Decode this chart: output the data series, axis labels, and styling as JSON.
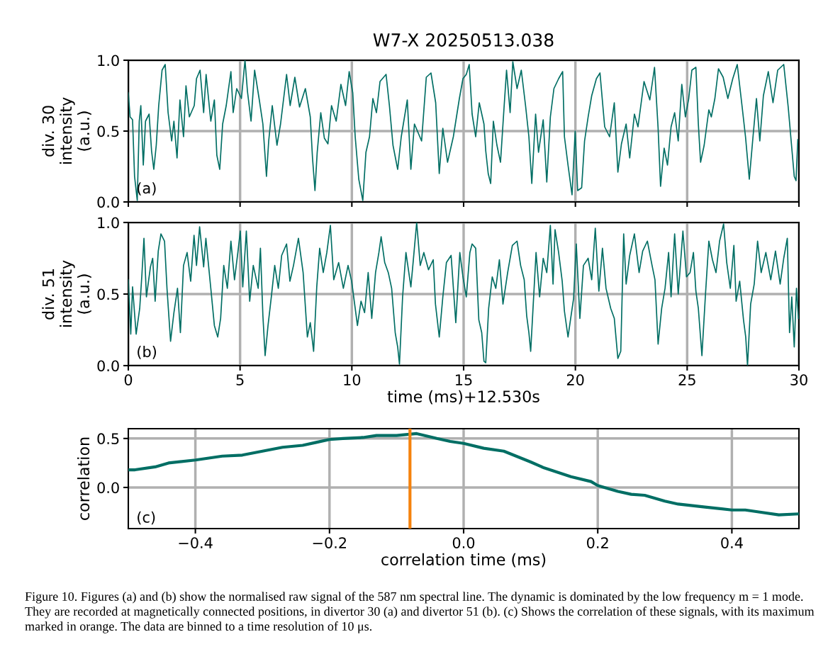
{
  "chart_data": [
    {
      "type": "line",
      "title": "W7-X 20250513.038",
      "ylabel": "div. 30\nintensity\n(a.u.)",
      "annotations": [
        "(a)"
      ],
      "series": [
        {
          "color": "#006e64",
          "x": [
            0,
            0.08,
            0.19,
            0.28,
            0.4,
            0.49,
            0.56,
            0.67,
            0.77,
            0.93,
            1.04,
            1.14,
            1.25,
            1.36,
            1.51,
            1.65,
            1.78,
            1.94,
            2.04,
            2.18,
            2.31,
            2.47,
            2.58,
            2.73,
            2.95,
            3.05,
            3.21,
            3.37,
            3.48,
            3.69,
            3.85,
            3.96,
            4.09,
            4.22,
            4.38,
            4.59,
            4.69,
            4.85,
            5.06,
            5.22,
            5.33,
            5.49,
            5.65,
            5.86,
            6.02,
            6.18,
            6.28,
            6.44,
            6.65,
            6.81,
            7.08,
            7.24,
            7.45,
            7.66,
            7.92,
            8.14,
            8.24,
            8.35,
            8.45,
            8.61,
            8.77,
            8.93,
            9.09,
            9.3,
            9.51,
            9.72,
            9.88,
            10.04,
            10.15,
            10.31,
            10.49,
            10.63,
            10.79,
            10.94,
            11.1,
            11.26,
            11.53,
            11.68,
            11.84,
            12.05,
            12.21,
            12.48,
            12.64,
            12.8,
            13.12,
            13.33,
            13.54,
            13.75,
            13.91,
            14.07,
            14.28,
            14.54,
            14.81,
            14.97,
            15.12,
            15.25,
            15.38,
            15.54,
            15.7,
            15.91,
            15.99,
            16.1,
            16.21,
            16.33,
            16.49,
            16.65,
            16.81,
            16.92,
            17.08,
            17.2,
            17.39,
            17.58,
            17.77,
            17.92,
            18.05,
            18.22,
            18.35,
            18.56,
            18.72,
            18.88,
            19.04,
            19.25,
            19.43,
            19.51,
            19.67,
            19.85,
            19.99,
            20.1,
            20.28,
            20.41,
            20.57,
            20.73,
            20.94,
            21.1,
            21.31,
            21.53,
            21.74,
            21.9,
            22.06,
            22.27,
            22.43,
            22.64,
            22.8,
            23.07,
            23.33,
            23.54,
            23.7,
            23.81,
            23.97,
            24.12,
            24.28,
            24.44,
            24.6,
            24.76,
            24.92,
            25.07,
            25.21,
            25.39,
            25.5,
            25.6,
            25.76,
            25.97,
            26.08,
            26.24,
            26.4,
            26.61,
            26.82,
            27.04,
            27.24,
            27.46,
            27.61,
            27.78,
            27.94,
            28.1,
            28.25,
            28.41,
            28.63,
            28.84,
            29.05,
            29.32,
            29.52,
            29.68,
            29.79,
            29.87,
            29.95
          ],
          "values": [
            0.77,
            0.6,
            0.58,
            0.18,
            0.01,
            0.57,
            0.68,
            0.26,
            0.57,
            0.62,
            0.36,
            0.23,
            0.4,
            0.68,
            0.93,
            0.97,
            0.63,
            0.43,
            0.57,
            0.31,
            0.72,
            0.46,
            0.82,
            0.6,
            0.68,
            0.87,
            0.93,
            0.63,
            0.9,
            0.57,
            0.72,
            0.33,
            0.23,
            0.55,
            0.68,
            0.92,
            0.63,
            0.8,
            0.73,
            1.0,
            0.78,
            0.57,
            0.93,
            0.72,
            0.55,
            0.18,
            0.43,
            0.68,
            0.4,
            0.55,
            0.9,
            0.68,
            0.88,
            0.67,
            0.8,
            0.6,
            0.31,
            0.08,
            0.35,
            0.63,
            0.45,
            0.41,
            0.68,
            0.57,
            0.83,
            0.68,
            0.92,
            0.77,
            0.46,
            0.16,
            0.01,
            0.35,
            0.46,
            0.73,
            0.63,
            0.85,
            0.9,
            0.68,
            0.4,
            0.23,
            0.46,
            0.72,
            0.23,
            0.55,
            0.43,
            0.88,
            0.91,
            0.7,
            0.2,
            0.52,
            0.28,
            0.46,
            0.73,
            0.87,
            0.9,
            0.97,
            0.62,
            0.46,
            0.7,
            0.55,
            0.36,
            0.2,
            0.13,
            0.57,
            0.4,
            0.28,
            0.67,
            0.93,
            0.63,
            0.99,
            0.8,
            0.93,
            0.68,
            0.46,
            0.13,
            0.62,
            0.35,
            0.58,
            0.14,
            0.6,
            0.8,
            0.87,
            0.92,
            0.46,
            0.26,
            0.05,
            0.5,
            0.08,
            0.1,
            0.43,
            0.6,
            0.75,
            0.87,
            0.91,
            0.53,
            0.46,
            0.7,
            0.21,
            0.41,
            0.55,
            0.31,
            0.62,
            0.53,
            0.85,
            0.72,
            0.95,
            0.52,
            0.11,
            0.38,
            0.26,
            0.53,
            0.63,
            0.43,
            0.83,
            0.6,
            0.73,
            0.93,
            0.95,
            0.55,
            0.28,
            0.4,
            0.65,
            0.6,
            0.73,
            0.94,
            0.88,
            0.73,
            0.87,
            0.97,
            0.67,
            0.46,
            0.16,
            0.45,
            0.73,
            0.43,
            0.75,
            0.92,
            0.7,
            0.93,
            0.97,
            0.67,
            0.38,
            0.18,
            0.15,
            0.44
          ]
        }
      ],
      "xlim": [
        0,
        30
      ],
      "xticks": [
        0,
        5,
        10,
        15,
        20,
        25,
        30
      ],
      "ylim": [
        0,
        1
      ],
      "yticks": [
        {
          "value": 0,
          "label": "0.0"
        },
        {
          "value": 0.5,
          "label": "0.5"
        },
        {
          "value": 1,
          "label": "1.0"
        }
      ],
      "tick_labels": "y",
      "grid": true
    },
    {
      "type": "line",
      "ylabel": "div. 51\nintensity\n(a.u.)",
      "xlabel": "time (ms)+12.530s",
      "annotations": [
        "(b)"
      ],
      "series": [
        {
          "color": "#006e64",
          "x": [
            0,
            0.11,
            0.19,
            0.35,
            0.51,
            0.61,
            0.7,
            0.81,
            0.99,
            1.09,
            1.2,
            1.34,
            1.46,
            1.62,
            1.73,
            1.89,
            2.04,
            2.2,
            2.33,
            2.47,
            2.63,
            2.79,
            2.94,
            3.05,
            3.19,
            3.37,
            3.47,
            3.69,
            3.85,
            4.0,
            4.13,
            4.27,
            4.43,
            4.59,
            4.75,
            4.9,
            5.01,
            5.12,
            5.28,
            5.43,
            5.59,
            5.81,
            5.91,
            6.02,
            6.12,
            6.25,
            6.39,
            6.55,
            6.71,
            6.86,
            7.08,
            7.23,
            7.39,
            7.61,
            7.82,
            8.01,
            8.14,
            8.29,
            8.43,
            8.56,
            8.72,
            8.88,
            9.04,
            9.19,
            9.41,
            9.62,
            9.83,
            9.99,
            10.15,
            10.25,
            10.41,
            10.57,
            10.73,
            10.89,
            11.06,
            11.21,
            11.31,
            11.47,
            11.63,
            11.78,
            11.94,
            12.05,
            12.13,
            12.27,
            12.42,
            12.64,
            12.74,
            12.9,
            13.06,
            13.22,
            13.43,
            13.64,
            13.74,
            13.91,
            14.07,
            14.23,
            14.44,
            14.65,
            14.83,
            14.97,
            15.12,
            15.28,
            15.38,
            15.54,
            15.68,
            15.81,
            15.91,
            15.99,
            16.12,
            16.28,
            16.44,
            16.6,
            16.76,
            16.97,
            17.18,
            17.39,
            17.55,
            17.71,
            17.82,
            17.92,
            18.0,
            18.08,
            18.24,
            18.4,
            18.56,
            18.72,
            18.88,
            19.0,
            19.09,
            19.25,
            19.41,
            19.51,
            19.67,
            19.78,
            19.92,
            20.04,
            20.2,
            20.36,
            20.57,
            20.73,
            20.89,
            21.05,
            21.21,
            21.37,
            21.58,
            21.74,
            21.9,
            22.03,
            22.16,
            22.27,
            22.43,
            22.64,
            22.85,
            23.01,
            23.22,
            23.43,
            23.56,
            23.7,
            23.86,
            24.01,
            24.17,
            24.28,
            24.44,
            24.6,
            24.81,
            24.97,
            25.13,
            25.28,
            25.39,
            25.5,
            25.66,
            25.82,
            25.97,
            26.13,
            26.29,
            26.45,
            26.63,
            26.77,
            26.93,
            27.09,
            27.19,
            27.35,
            27.52,
            27.62,
            27.7,
            27.84,
            28.0,
            28.15,
            28.31,
            28.52,
            28.74,
            28.95,
            29.16,
            29.32,
            29.48,
            29.58,
            29.68,
            29.79,
            29.89,
            29.98
          ],
          "values": [
            0.6,
            0.22,
            0.55,
            0.22,
            0.4,
            0.64,
            0.89,
            0.48,
            0.69,
            0.75,
            0.45,
            0.8,
            0.92,
            0.87,
            0.54,
            0.17,
            0.37,
            0.54,
            0.23,
            0.7,
            0.79,
            0.59,
            0.91,
            0.7,
            0.97,
            0.69,
            0.89,
            0.54,
            0.28,
            0.2,
            0.33,
            0.7,
            0.54,
            0.87,
            0.6,
            0.79,
            0.94,
            0.55,
            0.94,
            0.45,
            0.7,
            0.54,
            0.82,
            0.35,
            0.07,
            0.28,
            0.47,
            0.7,
            0.54,
            0.77,
            0.85,
            0.59,
            0.7,
            0.89,
            0.65,
            0.2,
            0.3,
            0.1,
            0.55,
            0.82,
            0.65,
            0.79,
            0.98,
            0.6,
            0.72,
            0.54,
            0.7,
            0.59,
            0.4,
            0.28,
            0.45,
            0.37,
            0.65,
            0.33,
            0.65,
            0.79,
            0.9,
            0.72,
            0.65,
            0.54,
            0.23,
            0.13,
            0.01,
            0.48,
            0.79,
            0.55,
            0.72,
            1.0,
            0.7,
            0.79,
            0.67,
            0.74,
            0.43,
            0.2,
            0.48,
            0.72,
            0.77,
            0.3,
            0.79,
            0.62,
            0.48,
            0.79,
            0.85,
            0.82,
            0.32,
            0.23,
            0.03,
            0.02,
            0.4,
            0.62,
            0.54,
            0.74,
            0.43,
            0.65,
            0.84,
            0.87,
            0.7,
            0.6,
            0.35,
            0.23,
            0.1,
            0.33,
            0.79,
            0.48,
            0.75,
            0.65,
            0.98,
            0.57,
            0.95,
            0.79,
            0.59,
            0.38,
            0.2,
            0.32,
            0.47,
            0.85,
            0.33,
            0.7,
            0.75,
            0.6,
            0.96,
            0.52,
            0.82,
            0.54,
            0.4,
            0.33,
            0.05,
            0.1,
            0.92,
            0.57,
            0.77,
            0.92,
            0.65,
            0.8,
            0.87,
            0.7,
            0.6,
            0.15,
            0.4,
            0.54,
            0.79,
            0.48,
            0.92,
            0.5,
            0.94,
            0.62,
            0.65,
            0.79,
            0.52,
            0.4,
            0.07,
            0.5,
            0.87,
            0.74,
            0.65,
            0.87,
            0.99,
            0.72,
            0.54,
            0.84,
            0.45,
            0.59,
            0.32,
            0.2,
            0.0,
            0.43,
            0.57,
            0.87,
            0.65,
            0.79,
            0.6,
            0.8,
            0.57,
            0.75,
            0.89,
            0.23,
            0.48,
            0.13,
            0.54,
            0.33
          ]
        }
      ],
      "xlim": [
        0,
        30
      ],
      "xticks": [
        0,
        5,
        10,
        15,
        20,
        25,
        30
      ],
      "ylim": [
        0,
        1
      ],
      "yticks": [
        {
          "value": 0,
          "label": "0.0"
        },
        {
          "value": 0.5,
          "label": "0.5"
        },
        {
          "value": 1,
          "label": "1.0"
        }
      ],
      "grid": true
    },
    {
      "type": "line",
      "ylabel": "correlation",
      "xlabel": "correlation time (ms)",
      "annotations": [
        "(c)",
        "Figure 10. Figures (a) and (b) show the normalised raw signal of the 587 nm spectral line. The dynamic is dominated by the low frequency m = 1 mode. They are recorded at magnetically connected positions, in divertor 30 (a) and divertor 51 (b). (c) Shows the correlation of these signals, with its maximum marked in orange. The data are binned to a time resolution of 10 μs."
      ],
      "series": [
        {
          "color": "#006e64",
          "x": [
            -0.5,
            -0.49,
            -0.46,
            -0.44,
            -0.4,
            -0.38,
            -0.36,
            -0.33,
            -0.3,
            -0.27,
            -0.24,
            -0.22,
            -0.2,
            -0.18,
            -0.15,
            -0.13,
            -0.1,
            -0.07,
            -0.04,
            -0.02,
            0.0,
            0.03,
            0.06,
            0.1,
            0.12,
            0.16,
            0.19,
            0.2,
            0.23,
            0.25,
            0.27,
            0.3,
            0.32,
            0.36,
            0.4,
            0.42,
            0.44,
            0.47,
            0.5
          ],
          "values": [
            0.18,
            0.18,
            0.21,
            0.25,
            0.28,
            0.3,
            0.32,
            0.33,
            0.37,
            0.41,
            0.43,
            0.46,
            0.49,
            0.5,
            0.51,
            0.53,
            0.53,
            0.55,
            0.5,
            0.47,
            0.45,
            0.4,
            0.37,
            0.26,
            0.2,
            0.11,
            0.06,
            0.02,
            -0.04,
            -0.07,
            -0.08,
            -0.14,
            -0.17,
            -0.2,
            -0.23,
            -0.23,
            -0.25,
            -0.28,
            -0.27
          ]
        }
      ],
      "ref_lines": [
        {
          "axis": "x",
          "value": -0.08,
          "color": "#f5820d"
        }
      ],
      "xlim": [
        -0.5,
        0.5
      ],
      "xticks": [
        {
          "value": -0.4,
          "label": "−0.4"
        },
        {
          "value": -0.2,
          "label": "−0.2"
        },
        {
          "value": 0,
          "label": "0.0"
        },
        {
          "value": 0.2,
          "label": "0.2"
        },
        {
          "value": 0.4,
          "label": "0.4"
        }
      ],
      "ylim": [
        -0.42,
        0.6
      ],
      "yticks": [
        {
          "value": 0,
          "label": "0.0"
        },
        {
          "value": 0.5,
          "label": "0.5"
        }
      ],
      "grid": true
    }
  ]
}
